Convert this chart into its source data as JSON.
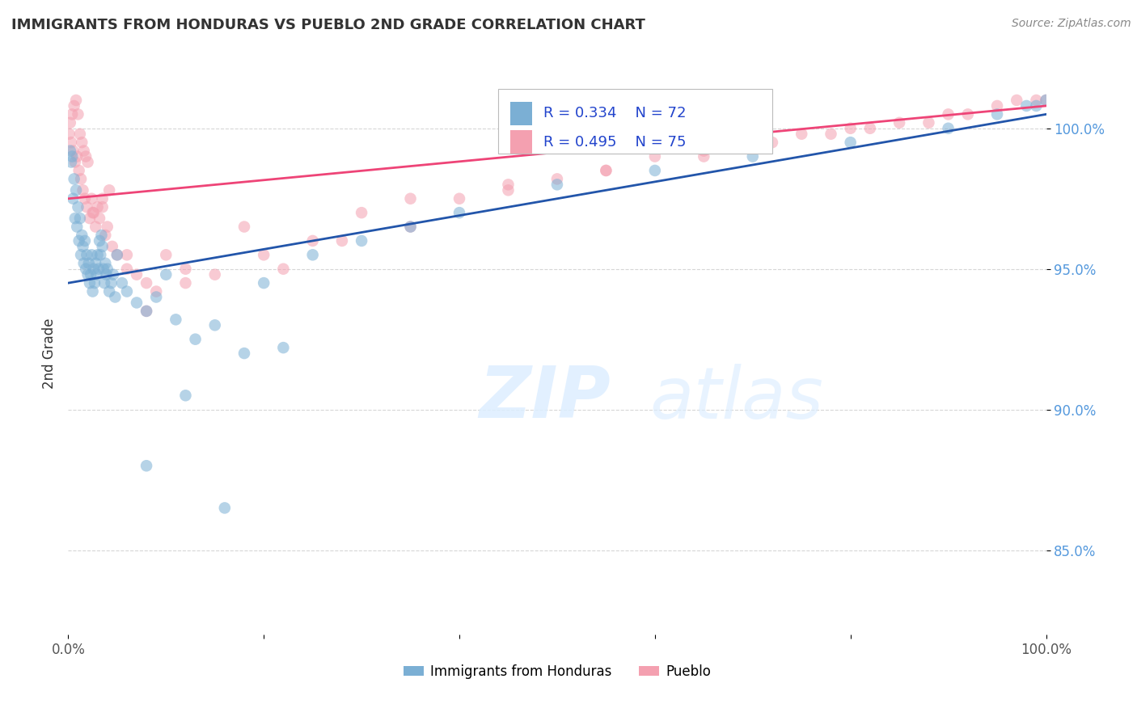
{
  "title": "IMMIGRANTS FROM HONDURAS VS PUEBLO 2ND GRADE CORRELATION CHART",
  "source_text": "Source: ZipAtlas.com",
  "ylabel": "2nd Grade",
  "x_min": 0.0,
  "x_max": 100.0,
  "y_min": 82.0,
  "y_max": 102.0,
  "y_ticks": [
    85.0,
    90.0,
    95.0,
    100.0
  ],
  "y_tick_labels": [
    "85.0%",
    "90.0%",
    "95.0%",
    "100.0%"
  ],
  "legend_r1": "R = 0.334",
  "legend_n1": "N = 72",
  "legend_r2": "R = 0.495",
  "legend_n2": "N = 75",
  "legend_label1": "Immigrants from Honduras",
  "legend_label2": "Pueblo",
  "blue_color": "#7BAFD4",
  "pink_color": "#F4A0B0",
  "blue_line_color": "#2255AA",
  "pink_line_color": "#EE4477",
  "watermark_zip": "ZIP",
  "watermark_atlas": "atlas",
  "blue_line_y_start": 94.5,
  "blue_line_y_end": 100.5,
  "pink_line_y_start": 97.5,
  "pink_line_y_end": 100.8,
  "blue_scatter_x": [
    0.2,
    0.3,
    0.4,
    0.5,
    0.6,
    0.7,
    0.8,
    0.9,
    1.0,
    1.1,
    1.2,
    1.3,
    1.4,
    1.5,
    1.6,
    1.7,
    1.8,
    1.9,
    2.0,
    2.1,
    2.2,
    2.3,
    2.4,
    2.5,
    2.6,
    2.7,
    2.8,
    2.9,
    3.0,
    3.1,
    3.2,
    3.3,
    3.4,
    3.5,
    3.6,
    3.7,
    3.8,
    3.9,
    4.0,
    4.2,
    4.4,
    4.6,
    4.8,
    5.0,
    5.5,
    6.0,
    7.0,
    8.0,
    9.0,
    10.0,
    11.0,
    13.0,
    15.0,
    18.0,
    20.0,
    25.0,
    30.0,
    35.0,
    40.0,
    50.0,
    60.0,
    70.0,
    80.0,
    90.0,
    95.0,
    98.0,
    99.0,
    100.0,
    22.0,
    8.0,
    12.0,
    16.0
  ],
  "blue_scatter_y": [
    99.2,
    98.8,
    99.0,
    97.5,
    98.2,
    96.8,
    97.8,
    96.5,
    97.2,
    96.0,
    96.8,
    95.5,
    96.2,
    95.8,
    95.2,
    96.0,
    95.0,
    95.5,
    94.8,
    95.2,
    94.5,
    94.8,
    95.5,
    94.2,
    95.0,
    94.5,
    95.2,
    94.8,
    95.5,
    95.0,
    96.0,
    95.5,
    96.2,
    95.8,
    95.0,
    94.5,
    95.2,
    94.8,
    95.0,
    94.2,
    94.5,
    94.8,
    94.0,
    95.5,
    94.5,
    94.2,
    93.8,
    93.5,
    94.0,
    94.8,
    93.2,
    92.5,
    93.0,
    92.0,
    94.5,
    95.5,
    96.0,
    96.5,
    97.0,
    98.0,
    98.5,
    99.0,
    99.5,
    100.0,
    100.5,
    100.8,
    100.8,
    101.0,
    92.2,
    88.0,
    90.5,
    86.5
  ],
  "pink_scatter_x": [
    0.1,
    0.2,
    0.3,
    0.4,
    0.5,
    0.6,
    0.7,
    0.8,
    0.9,
    1.0,
    1.1,
    1.2,
    1.3,
    1.4,
    1.5,
    1.6,
    1.7,
    1.8,
    1.9,
    2.0,
    2.2,
    2.4,
    2.6,
    2.8,
    3.0,
    3.2,
    3.5,
    3.8,
    4.0,
    4.5,
    5.0,
    6.0,
    7.0,
    8.0,
    9.0,
    10.0,
    12.0,
    15.0,
    20.0,
    25.0,
    30.0,
    35.0,
    40.0,
    45.0,
    50.0,
    55.0,
    60.0,
    65.0,
    70.0,
    75.0,
    80.0,
    85.0,
    90.0,
    95.0,
    97.0,
    99.0,
    100.0,
    88.0,
    92.0,
    72.0,
    78.0,
    82.0,
    45.0,
    55.0,
    65.0,
    22.0,
    18.0,
    35.0,
    28.0,
    12.0,
    8.0,
    3.5,
    6.0,
    4.2,
    2.5
  ],
  "pink_scatter_y": [
    99.8,
    100.2,
    99.5,
    100.5,
    99.2,
    100.8,
    98.8,
    101.0,
    99.0,
    100.5,
    98.5,
    99.8,
    98.2,
    99.5,
    97.8,
    99.2,
    97.5,
    99.0,
    97.2,
    98.8,
    96.8,
    97.5,
    97.0,
    96.5,
    97.2,
    96.8,
    97.5,
    96.2,
    96.5,
    95.8,
    95.5,
    95.0,
    94.8,
    94.5,
    94.2,
    95.5,
    95.0,
    94.8,
    95.5,
    96.0,
    97.0,
    96.5,
    97.5,
    97.8,
    98.2,
    98.5,
    99.0,
    99.2,
    99.5,
    99.8,
    100.0,
    100.2,
    100.5,
    100.8,
    101.0,
    101.0,
    101.0,
    100.2,
    100.5,
    99.5,
    99.8,
    100.0,
    98.0,
    98.5,
    99.0,
    95.0,
    96.5,
    97.5,
    96.0,
    94.5,
    93.5,
    97.2,
    95.5,
    97.8,
    97.0
  ]
}
